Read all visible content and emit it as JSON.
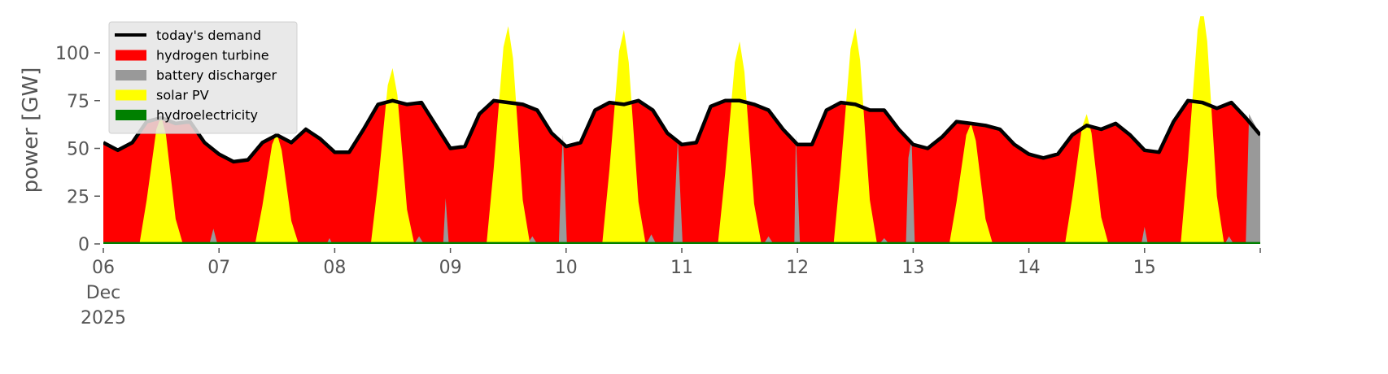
{
  "chart_data": {
    "type": "area",
    "title": "",
    "xlabel": "",
    "ylabel": "power [GW]",
    "xlim": [
      "2025-12-06T00:00",
      "2025-12-16T00:00"
    ],
    "ylim": [
      0,
      119
    ],
    "yticks": [
      0,
      25,
      50,
      75,
      100
    ],
    "xticks": [
      {
        "t": "2025-12-06T00:00",
        "label": "06",
        "sub1": "Dec",
        "sub2": "2025"
      },
      {
        "t": "2025-12-07T00:00",
        "label": "07"
      },
      {
        "t": "2025-12-08T00:00",
        "label": "08"
      },
      {
        "t": "2025-12-09T00:00",
        "label": "09"
      },
      {
        "t": "2025-12-10T00:00",
        "label": "10"
      },
      {
        "t": "2025-12-11T00:00",
        "label": "11"
      },
      {
        "t": "2025-12-12T00:00",
        "label": "12"
      },
      {
        "t": "2025-12-13T00:00",
        "label": "13"
      },
      {
        "t": "2025-12-14T00:00",
        "label": "14"
      },
      {
        "t": "2025-12-15T00:00",
        "label": "15"
      },
      {
        "t": "2025-12-16T00:00",
        "label": ""
      }
    ],
    "grid": false,
    "legend_placement": "top-left",
    "demand": {
      "name": "today's demand",
      "color": "#000000",
      "start": "2025-12-06T00:00",
      "step_hours": 3,
      "values": [
        53,
        49,
        53,
        64,
        66,
        63,
        64,
        53,
        47,
        43,
        44,
        53,
        57,
        53,
        60,
        55,
        48,
        48,
        60,
        73,
        75,
        73,
        74,
        62,
        50,
        51,
        68,
        75,
        74,
        73,
        70,
        58,
        51,
        53,
        70,
        74,
        73,
        75,
        70,
        58,
        52,
        53,
        72,
        75,
        75,
        73,
        70,
        60,
        52,
        52,
        70,
        74,
        73,
        70,
        70,
        60,
        52,
        50,
        56,
        64,
        63,
        62,
        60,
        52,
        47,
        45,
        47,
        57,
        62,
        60,
        63,
        57,
        49,
        48,
        64,
        75,
        74,
        71,
        74,
        66,
        57
      ]
    },
    "series": [
      {
        "name": "hydrogen turbine",
        "color": "#ff0000",
        "fill_to": "demand"
      },
      {
        "name": "battery discharger",
        "color": "#999999",
        "points": [
          [
            "2025-12-06T22:00",
            0
          ],
          [
            "2025-12-06T22:50",
            8
          ],
          [
            "2025-12-06T23:40",
            0
          ],
          [
            "2025-12-07T22:20",
            0
          ],
          [
            "2025-12-07T22:55",
            3
          ],
          [
            "2025-12-07T23:30",
            0
          ],
          [
            "2025-12-08T16:30",
            0
          ],
          [
            "2025-12-08T17:30",
            4
          ],
          [
            "2025-12-08T18:30",
            0
          ],
          [
            "2025-12-08T22:30",
            0
          ],
          [
            "2025-12-08T23:00",
            24
          ],
          [
            "2025-12-08T23:40",
            0
          ],
          [
            "2025-12-09T16:00",
            0
          ],
          [
            "2025-12-09T17:00",
            4
          ],
          [
            "2025-12-09T18:00",
            0
          ],
          [
            "2025-12-09T22:30",
            0
          ],
          [
            "2025-12-09T23:00",
            40
          ],
          [
            "2025-12-09T23:20",
            57
          ],
          [
            "2025-12-10T00:10",
            0
          ],
          [
            "2025-12-10T16:40",
            0
          ],
          [
            "2025-12-10T17:40",
            5
          ],
          [
            "2025-12-10T18:40",
            0
          ],
          [
            "2025-12-10T22:10",
            0
          ],
          [
            "2025-12-10T23:10",
            55
          ],
          [
            "2025-12-11T00:10",
            0
          ],
          [
            "2025-12-11T17:00",
            0
          ],
          [
            "2025-12-11T18:00",
            4
          ],
          [
            "2025-12-11T19:00",
            0
          ],
          [
            "2025-12-11T23:20",
            0
          ],
          [
            "2025-12-11T23:40",
            57
          ],
          [
            "2025-12-12T00:30",
            0
          ],
          [
            "2025-12-12T17:00",
            0
          ],
          [
            "2025-12-12T18:00",
            3
          ],
          [
            "2025-12-12T19:00",
            0
          ],
          [
            "2025-12-12T22:30",
            0
          ],
          [
            "2025-12-12T23:00",
            45
          ],
          [
            "2025-12-12T23:40",
            55
          ],
          [
            "2025-12-13T00:20",
            0
          ],
          [
            "2025-12-14T23:20",
            0
          ],
          [
            "2025-12-15T00:00",
            9
          ],
          [
            "2025-12-15T00:40",
            0
          ],
          [
            "2025-12-15T16:40",
            0
          ],
          [
            "2025-12-15T17:30",
            4
          ],
          [
            "2025-12-15T18:30",
            0
          ],
          [
            "2025-12-15T21:00",
            0
          ],
          [
            "2025-12-15T21:40",
            68
          ],
          [
            "2025-12-16T00:00",
            57
          ]
        ]
      },
      {
        "name": "solar PV",
        "color": "#ffff00",
        "points": [
          [
            "2025-12-06T07:30",
            0
          ],
          [
            "2025-12-06T09:00",
            23
          ],
          [
            "2025-12-06T11:00",
            60
          ],
          [
            "2025-12-06T12:00",
            67
          ],
          [
            "2025-12-06T13:00",
            57
          ],
          [
            "2025-12-06T15:00",
            13
          ],
          [
            "2025-12-06T16:30",
            0
          ],
          [
            "2025-12-07T07:30",
            0
          ],
          [
            "2025-12-07T09:00",
            20
          ],
          [
            "2025-12-07T11:00",
            52
          ],
          [
            "2025-12-07T12:00",
            58
          ],
          [
            "2025-12-07T13:00",
            49
          ],
          [
            "2025-12-07T15:00",
            12
          ],
          [
            "2025-12-07T16:30",
            0
          ],
          [
            "2025-12-08T07:30",
            0
          ],
          [
            "2025-12-08T09:00",
            32
          ],
          [
            "2025-12-08T11:00",
            83
          ],
          [
            "2025-12-08T12:00",
            92
          ],
          [
            "2025-12-08T13:00",
            78
          ],
          [
            "2025-12-08T15:00",
            18
          ],
          [
            "2025-12-08T16:30",
            0
          ],
          [
            "2025-12-09T07:30",
            0
          ],
          [
            "2025-12-09T09:00",
            40
          ],
          [
            "2025-12-09T11:00",
            103
          ],
          [
            "2025-12-09T12:00",
            114
          ],
          [
            "2025-12-09T13:00",
            97
          ],
          [
            "2025-12-09T15:00",
            23
          ],
          [
            "2025-12-09T16:30",
            0
          ],
          [
            "2025-12-10T07:30",
            0
          ],
          [
            "2025-12-10T09:00",
            39
          ],
          [
            "2025-12-10T11:00",
            101
          ],
          [
            "2025-12-10T12:00",
            112
          ],
          [
            "2025-12-10T13:00",
            95
          ],
          [
            "2025-12-10T15:00",
            22
          ],
          [
            "2025-12-10T16:30",
            0
          ],
          [
            "2025-12-11T07:30",
            0
          ],
          [
            "2025-12-11T09:00",
            37
          ],
          [
            "2025-12-11T11:00",
            95
          ],
          [
            "2025-12-11T12:00",
            106
          ],
          [
            "2025-12-11T13:00",
            90
          ],
          [
            "2025-12-11T15:00",
            21
          ],
          [
            "2025-12-11T16:30",
            0
          ],
          [
            "2025-12-12T07:30",
            0
          ],
          [
            "2025-12-12T09:00",
            40
          ],
          [
            "2025-12-12T11:00",
            102
          ],
          [
            "2025-12-12T12:00",
            113
          ],
          [
            "2025-12-12T13:00",
            96
          ],
          [
            "2025-12-12T15:00",
            23
          ],
          [
            "2025-12-12T16:30",
            0
          ],
          [
            "2025-12-13T07:30",
            0
          ],
          [
            "2025-12-13T09:00",
            22
          ],
          [
            "2025-12-13T11:00",
            57
          ],
          [
            "2025-12-13T12:00",
            63
          ],
          [
            "2025-12-13T13:00",
            54
          ],
          [
            "2025-12-13T15:00",
            13
          ],
          [
            "2025-12-13T16:30",
            0
          ],
          [
            "2025-12-14T07:30",
            0
          ],
          [
            "2025-12-14T09:00",
            24
          ],
          [
            "2025-12-14T11:00",
            61
          ],
          [
            "2025-12-14T12:00",
            68
          ],
          [
            "2025-12-14T13:00",
            58
          ],
          [
            "2025-12-14T15:00",
            14
          ],
          [
            "2025-12-14T16:30",
            0
          ],
          [
            "2025-12-15T07:30",
            0
          ],
          [
            "2025-12-15T09:00",
            44
          ],
          [
            "2025-12-15T11:00",
            112
          ],
          [
            "2025-12-15T12:00",
            125
          ],
          [
            "2025-12-15T13:00",
            106
          ],
          [
            "2025-12-15T15:00",
            25
          ],
          [
            "2025-12-15T16:30",
            0
          ]
        ]
      },
      {
        "name": "hydroelectricity",
        "color": "#008000",
        "constant": 1
      }
    ]
  }
}
